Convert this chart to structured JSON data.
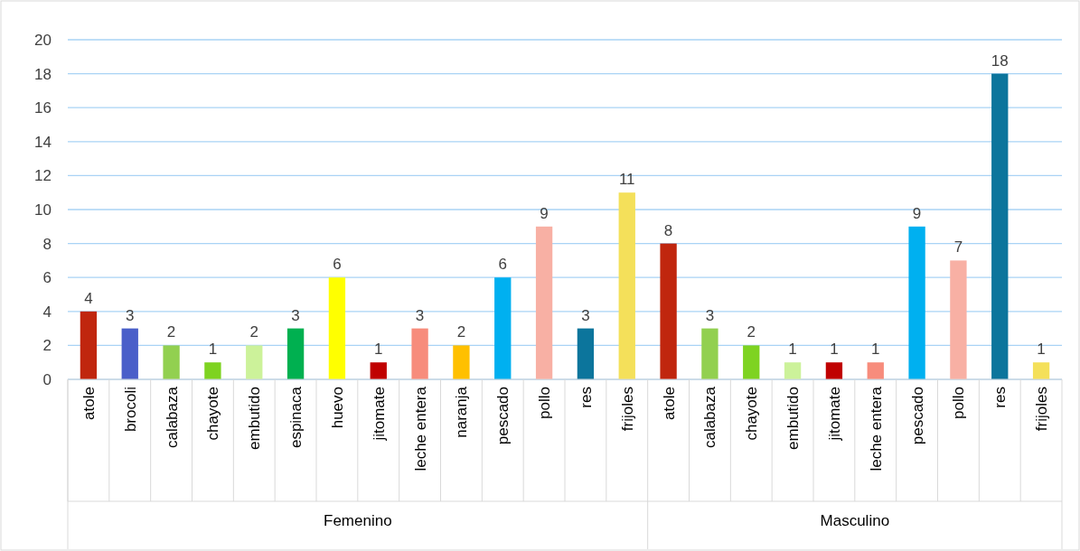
{
  "chart_data": {
    "type": "bar",
    "categories": [
      "atole",
      "brocoli",
      "calabaza",
      "chayote",
      "embutido",
      "espinaca",
      "huevo",
      "jitomate",
      "leche entera",
      "naranja",
      "pescado",
      "pollo",
      "res",
      "frijoles",
      "atole",
      "calabaza",
      "chayote",
      "embutido",
      "jitomate",
      "leche entera",
      "pescado",
      "pollo",
      "res",
      "frijoles"
    ],
    "values": [
      4,
      3,
      2,
      1,
      2,
      3,
      6,
      1,
      3,
      2,
      6,
      9,
      3,
      11,
      8,
      3,
      2,
      1,
      1,
      1,
      9,
      7,
      18,
      1
    ],
    "colors": [
      "#c0260e",
      "#4a5fc9",
      "#92d050",
      "#7ed321",
      "#ccf29a",
      "#00b050",
      "#ffff00",
      "#c00000",
      "#f78c7c",
      "#ffc000",
      "#00b0f0",
      "#f8b0a4",
      "#0c759c",
      "#f4e05a",
      "#c0260e",
      "#92d050",
      "#7ed321",
      "#ccf29a",
      "#c00000",
      "#f78c7c",
      "#00b0f0",
      "#f8b0a4",
      "#0c759c",
      "#f4e05a"
    ],
    "ylim": [
      0,
      20
    ],
    "yticks": [
      0,
      2,
      4,
      6,
      8,
      10,
      12,
      14,
      16,
      18,
      20
    ],
    "grid": "y",
    "data_labels": true,
    "annotations": [
      "Femenino",
      "Masculino"
    ]
  }
}
